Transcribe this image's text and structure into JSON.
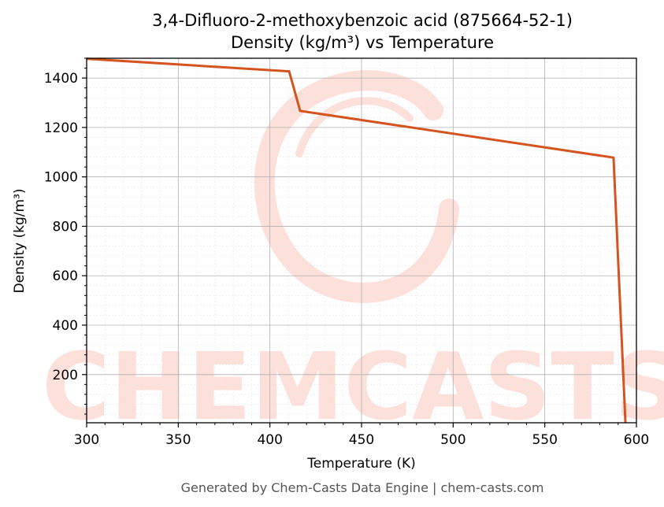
{
  "chart_data": {
    "type": "line",
    "title": "3,4-Difluoro-2-methoxybenzoic acid (875664-52-1)",
    "subtitle": "Density (kg/m³) vs Temperature",
    "xlabel": "Temperature (K)",
    "ylabel": "Density (kg/m³)",
    "xlim": [
      300,
      600
    ],
    "ylim": [
      5,
      1480
    ],
    "x_ticks": [
      300,
      350,
      400,
      450,
      500,
      550,
      600
    ],
    "y_ticks": [
      200,
      400,
      600,
      800,
      1000,
      1200,
      1400
    ],
    "grid": true,
    "series": [
      {
        "color": "#d4531f",
        "x": [
          300,
          410.5,
          416.5,
          587.5,
          594
        ],
        "y": [
          1478,
          1427,
          1267,
          1078,
          5
        ]
      }
    ]
  },
  "watermark": {
    "text": "CHEMCASTS",
    "color": "#fde0da"
  },
  "footer": {
    "text": "Generated by Chem-Casts Data Engine | chem-casts.com"
  }
}
